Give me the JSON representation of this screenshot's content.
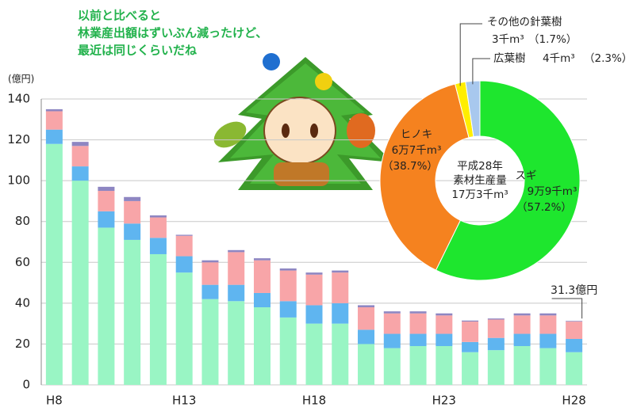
{
  "chart_data": [
    {
      "type": "bar",
      "stacked": true,
      "callout": [
        "以前と比べると",
        "林業産出額はずいぶん減ったけど、",
        "最近は同じくらいだね"
      ],
      "y_unit": "(億円)",
      "annotation": "31.3億円",
      "categories": [
        "H8",
        null,
        null,
        null,
        null,
        "H13",
        null,
        null,
        null,
        null,
        "H18",
        null,
        null,
        null,
        null,
        "H23",
        null,
        null,
        null,
        null,
        "H28"
      ],
      "series": [
        {
          "color": "#99f5c4",
          "values": [
            118,
            100,
            77,
            71,
            64,
            55,
            42,
            41,
            38,
            33,
            30,
            30,
            20,
            18,
            19,
            19,
            16,
            17,
            19,
            18,
            16
          ]
        },
        {
          "color": "#5fb5f0",
          "values": [
            7,
            7,
            8,
            8,
            8,
            8,
            7,
            8,
            7,
            8,
            9,
            10,
            7,
            7,
            6,
            6,
            5,
            6,
            6,
            7,
            6.5
          ]
        },
        {
          "color": "#f8a5a8",
          "values": [
            9,
            10,
            10,
            11,
            10,
            10,
            11,
            16,
            16,
            15,
            15,
            15,
            11,
            10,
            10,
            9,
            10,
            9,
            9,
            9,
            8.5
          ]
        },
        {
          "color": "#8e86c2",
          "values": [
            1,
            2,
            2,
            2,
            1,
            0.5,
            1,
            1,
            1,
            1,
            1,
            1,
            1,
            1,
            1,
            1,
            0.5,
            0.5,
            1,
            1,
            0.3
          ]
        }
      ],
      "ylim": [
        0,
        140
      ],
      "yticks": [
        0,
        20,
        40,
        60,
        80,
        100,
        120,
        140
      ],
      "grid": true
    },
    {
      "type": "pie",
      "donut": true,
      "center_text": [
        "平成28年",
        "素材生産量",
        "17万3千m³"
      ],
      "categories": [
        "スギ",
        "ヒノキ",
        "その他の針葉樹",
        "広葉樹"
      ],
      "amounts": [
        "9万9千m³",
        "6万7千m³",
        "3千m³",
        "4千m³"
      ],
      "values": [
        57.2,
        38.7,
        1.7,
        2.3
      ],
      "value_labels": [
        "（57.2%）",
        "（38.7%）",
        "（1.7%）",
        "（2.3%）"
      ],
      "colors": [
        "#1ee62e",
        "#f5821f",
        "#ffee00",
        "#a8c8ee"
      ]
    }
  ]
}
